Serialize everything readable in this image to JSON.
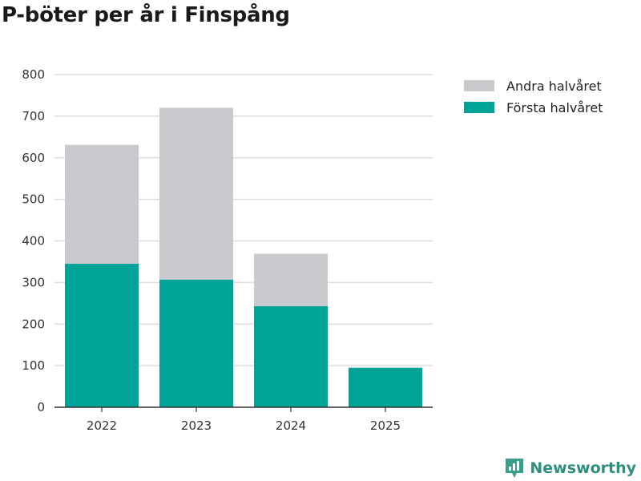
{
  "page": {
    "title": "P-böter per år i Finspång"
  },
  "brand": {
    "name": "Newsworthy"
  },
  "colors": {
    "forsta": "#00a398",
    "andra": "#c9c9ce",
    "grid": "#dddddd",
    "axis": "#333333",
    "brand": "#2f8f7f"
  },
  "chart_data": {
    "type": "bar",
    "stacked": true,
    "title": "P-böter per år i Finspång",
    "xlabel": "",
    "ylabel": "",
    "categories": [
      "2022",
      "2023",
      "2024",
      "2025"
    ],
    "series": [
      {
        "name": "Första halvåret",
        "values": [
          345,
          307,
          243,
          95
        ]
      },
      {
        "name": "Andra halvåret",
        "values": [
          286,
          413,
          126,
          0
        ]
      }
    ],
    "ylim": [
      0,
      800
    ],
    "yticks": [
      0,
      100,
      200,
      300,
      400,
      500,
      600,
      700,
      800
    ],
    "legend": {
      "position": "top-right",
      "entries": [
        "Andra halvåret",
        "Första halvåret"
      ]
    },
    "grid": true
  }
}
